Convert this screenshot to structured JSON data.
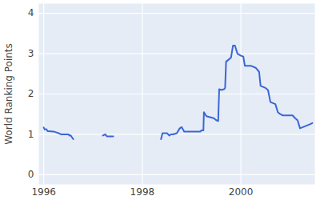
{
  "chart_data": {
    "type": "line",
    "y_label": "World Ranking Points",
    "x": [
      1996.0,
      1996.02,
      1996.05,
      1996.08,
      1996.1,
      1996.2,
      1996.25,
      1996.3,
      1996.35,
      1996.45,
      1996.5,
      1996.52,
      1996.54,
      1996.56,
      1996.6,
      1996.9,
      1997.2,
      1997.25,
      1997.28,
      1997.3,
      1997.41,
      1997.9,
      1998.38,
      1998.41,
      1998.5,
      1998.55,
      1998.58,
      1998.62,
      1998.7,
      1998.76,
      1998.8,
      1998.85,
      1999.0,
      1999.18,
      1999.2,
      1999.24,
      1999.25,
      1999.3,
      1999.45,
      1999.5,
      1999.54,
      1999.56,
      1999.6,
      1999.66,
      1999.68,
      1999.7,
      1999.75,
      1999.8,
      1999.84,
      1999.88,
      1999.93,
      2000.0,
      2000.05,
      2000.08,
      2000.2,
      2000.3,
      2000.37,
      2000.4,
      2000.5,
      2000.55,
      2000.6,
      2000.7,
      2000.75,
      2000.8,
      2000.85,
      2001.05,
      2001.1,
      2001.15,
      2001.2,
      2001.3,
      2001.4,
      2001.45
    ],
    "series": [
      {
        "name": "World Ranking Points",
        "color": "#3a66d6",
        "values": [
          1.17,
          1.12,
          1.13,
          1.08,
          1.08,
          1.07,
          1.05,
          1.03,
          1.0,
          1.0,
          1.0,
          0.97,
          0.98,
          0.95,
          0.88,
          null,
          0.97,
          1.0,
          0.95,
          0.95,
          0.95,
          null,
          0.88,
          1.03,
          1.03,
          0.97,
          1.0,
          1.0,
          1.03,
          1.15,
          1.18,
          1.07,
          1.07,
          1.07,
          1.1,
          1.1,
          1.55,
          1.45,
          1.4,
          1.35,
          1.33,
          2.12,
          2.1,
          2.12,
          2.15,
          2.8,
          2.85,
          2.9,
          3.2,
          3.2,
          3.0,
          2.95,
          2.93,
          2.7,
          2.7,
          2.65,
          2.55,
          2.2,
          2.15,
          2.1,
          1.8,
          1.75,
          1.55,
          1.5,
          1.47,
          1.47,
          1.4,
          1.35,
          1.15,
          1.2,
          1.25,
          1.28
        ]
      }
    ],
    "xlim": [
      1995.9,
      2001.5
    ],
    "xticks": [
      1996,
      1998,
      2000
    ],
    "ylim": [
      -0.24,
      4.24
    ],
    "yticks": [
      0,
      1,
      2,
      3,
      4
    ],
    "grid": true
  }
}
